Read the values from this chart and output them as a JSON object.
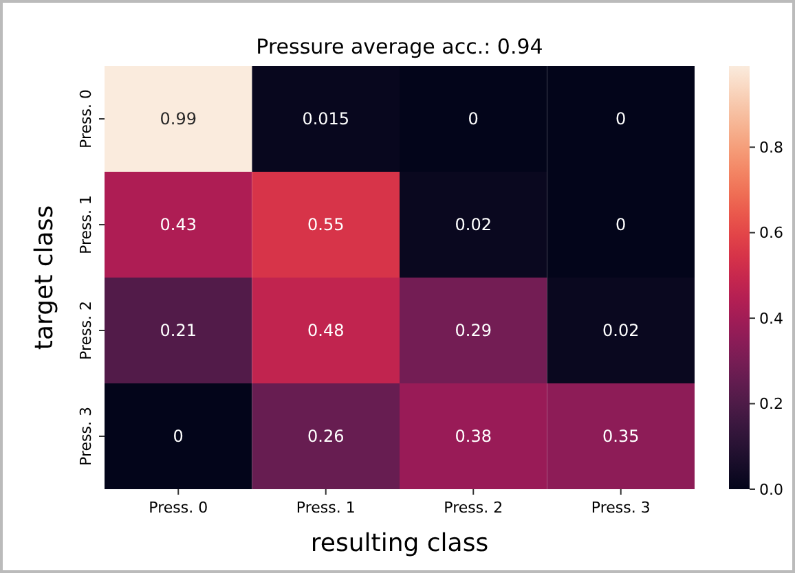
{
  "chart_data": {
    "type": "heatmap",
    "title": "Pressure average acc.: 0.94",
    "xlabel": "resulting class",
    "ylabel": "target class",
    "categories": [
      "Press. 0",
      "Press. 1",
      "Press. 2",
      "Press. 3"
    ],
    "y_categories": [
      "Press. 0",
      "Press. 1",
      "Press. 2",
      "Press. 3"
    ],
    "cells": [
      [
        0.99,
        0.015,
        0,
        0
      ],
      [
        0.43,
        0.55,
        0.02,
        0
      ],
      [
        0.21,
        0.48,
        0.29,
        0.02
      ],
      [
        0,
        0.26,
        0.38,
        0.35
      ]
    ],
    "data_labels": true,
    "clim": [
      0,
      0.99
    ],
    "cticks": [
      {
        "value": 0,
        "label": "0.0"
      },
      {
        "value": 0.2,
        "label": "0.2"
      },
      {
        "value": 0.4,
        "label": "0.4"
      },
      {
        "value": 0.6,
        "label": "0.6"
      },
      {
        "value": 0.8,
        "label": "0.8"
      }
    ]
  }
}
